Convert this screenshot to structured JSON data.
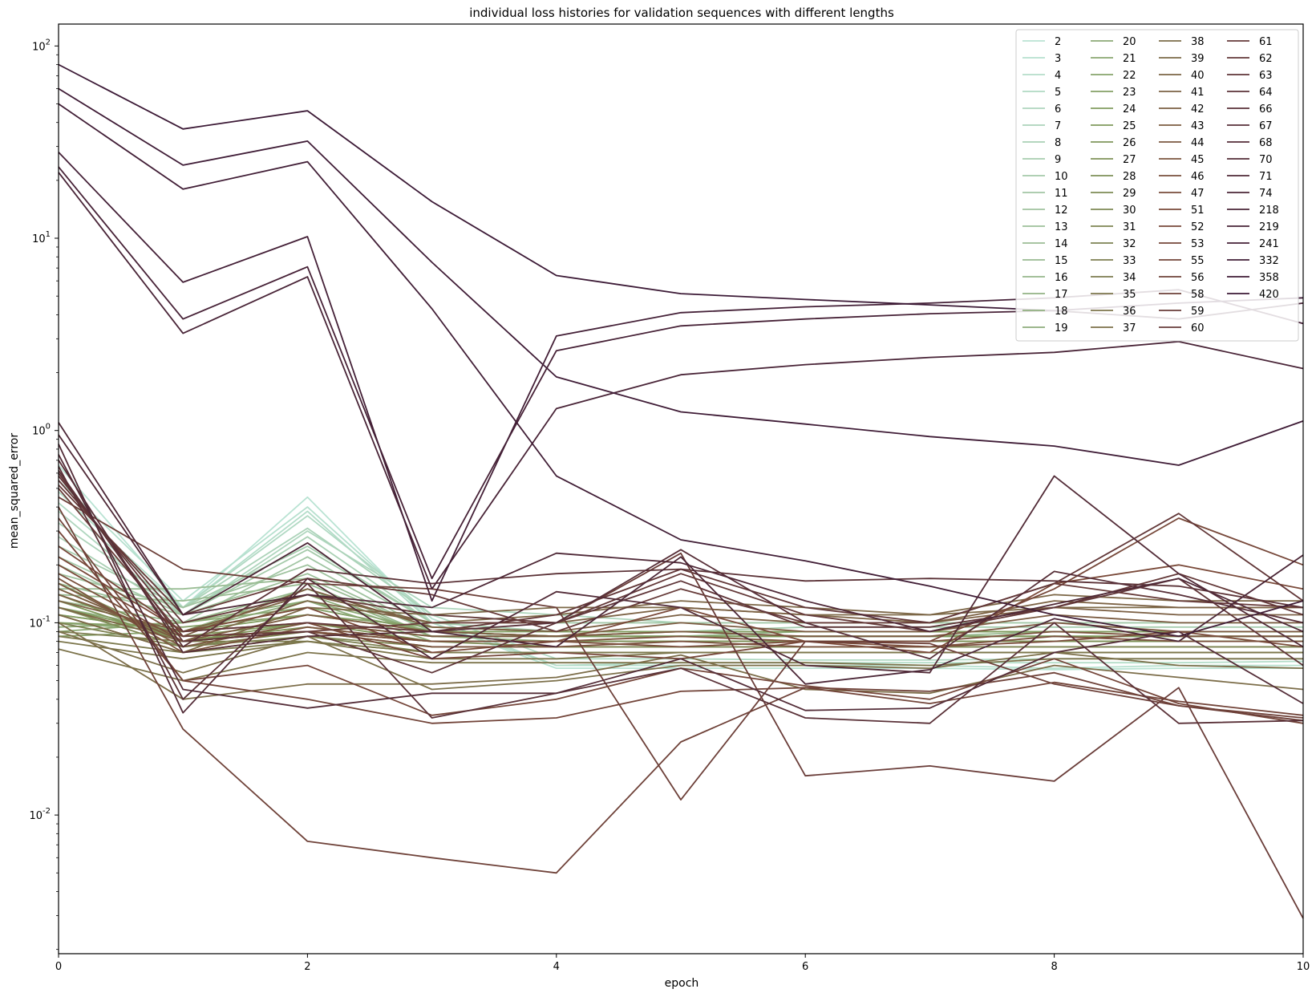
{
  "chart_data": {
    "type": "line",
    "title": "individual loss histories for validation sequences with different lengths",
    "xlabel": "epoch",
    "ylabel": "mean_squared_error",
    "xlim": [
      0,
      10
    ],
    "ylim": [
      0.0019,
      130
    ],
    "yscale": "log",
    "x_ticks": [
      0,
      2,
      4,
      6,
      8,
      10
    ],
    "y_ticks": [
      {
        "value": 0.01,
        "base": "10",
        "exp": "-2"
      },
      {
        "value": 0.1,
        "base": "10",
        "exp": "-1"
      },
      {
        "value": 1,
        "base": "10",
        "exp": "0"
      },
      {
        "value": 10,
        "base": "10",
        "exp": "1"
      },
      {
        "value": 100,
        "base": "10",
        "exp": "2"
      }
    ],
    "grid": false,
    "legend": {
      "placement": "upper-right",
      "columns": 4
    },
    "x": [
      0,
      1,
      2,
      3,
      4,
      5,
      6,
      7,
      8,
      9,
      10
    ],
    "colors": {
      "low": "#b9e3d3",
      "mid": "#7f9a5c",
      "high": "#7a4a3a",
      "top": "#3c1a36"
    },
    "series": [
      {
        "name": "2",
        "values": [
          0.66,
          0.12,
          0.45,
          0.1,
          0.058,
          0.058,
          0.058,
          0.058,
          0.057,
          0.058,
          0.058
        ]
      },
      {
        "name": "3",
        "values": [
          0.55,
          0.13,
          0.4,
          0.105,
          0.06,
          0.06,
          0.06,
          0.06,
          0.058,
          0.06,
          0.06
        ]
      },
      {
        "name": "4",
        "values": [
          0.48,
          0.12,
          0.38,
          0.1,
          0.06,
          0.062,
          0.062,
          0.062,
          0.062,
          0.062,
          0.063
        ]
      },
      {
        "name": "5",
        "values": [
          0.42,
          0.12,
          0.36,
          0.11,
          0.065,
          0.065,
          0.064,
          0.064,
          0.065,
          0.065,
          0.065
        ]
      },
      {
        "name": "6",
        "values": [
          0.38,
          0.11,
          0.3,
          0.12,
          0.11,
          0.1,
          0.1,
          0.1,
          0.1,
          0.1,
          0.1
        ]
      },
      {
        "name": "7",
        "values": [
          0.33,
          0.12,
          0.31,
          0.11,
          0.1,
          0.1,
          0.1,
          0.1,
          0.1,
          0.1,
          0.1
        ]
      },
      {
        "name": "8",
        "values": [
          0.28,
          0.11,
          0.28,
          0.1,
          0.1,
          0.1,
          0.1,
          0.1,
          0.1,
          0.1,
          0.1
        ]
      },
      {
        "name": "9",
        "values": [
          0.25,
          0.12,
          0.25,
          0.1,
          0.09,
          0.09,
          0.095,
          0.095,
          0.095,
          0.095,
          0.095
        ]
      },
      {
        "name": "10",
        "values": [
          0.22,
          0.11,
          0.24,
          0.1,
          0.1,
          0.1,
          0.1,
          0.1,
          0.1,
          0.1,
          0.1
        ]
      },
      {
        "name": "11",
        "values": [
          0.2,
          0.1,
          0.22,
          0.095,
          0.09,
          0.09,
          0.09,
          0.09,
          0.09,
          0.09,
          0.09
        ]
      },
      {
        "name": "12",
        "values": [
          0.18,
          0.12,
          0.2,
          0.09,
          0.09,
          0.09,
          0.09,
          0.09,
          0.09,
          0.09,
          0.09
        ]
      },
      {
        "name": "13",
        "values": [
          0.16,
          0.11,
          0.18,
          0.09,
          0.085,
          0.085,
          0.085,
          0.085,
          0.085,
          0.085,
          0.085
        ]
      },
      {
        "name": "14",
        "values": [
          0.15,
          0.15,
          0.17,
          0.09,
          0.085,
          0.085,
          0.085,
          0.085,
          0.09,
          0.09,
          0.09
        ]
      },
      {
        "name": "15",
        "values": [
          0.14,
          0.13,
          0.16,
          0.085,
          0.085,
          0.085,
          0.09,
          0.09,
          0.09,
          0.09,
          0.09
        ]
      },
      {
        "name": "16",
        "values": [
          0.13,
          0.1,
          0.15,
          0.085,
          0.085,
          0.09,
          0.09,
          0.09,
          0.09,
          0.09,
          0.09
        ]
      },
      {
        "name": "17",
        "values": [
          0.12,
          0.09,
          0.15,
          0.085,
          0.085,
          0.085,
          0.085,
          0.085,
          0.085,
          0.085,
          0.085
        ]
      },
      {
        "name": "18",
        "values": [
          0.11,
          0.09,
          0.14,
          0.085,
          0.08,
          0.08,
          0.08,
          0.08,
          0.08,
          0.08,
          0.08
        ]
      },
      {
        "name": "19",
        "values": [
          0.1,
          0.09,
          0.13,
          0.08,
          0.08,
          0.08,
          0.08,
          0.08,
          0.08,
          0.08,
          0.08
        ]
      },
      {
        "name": "20",
        "values": [
          0.095,
          0.1,
          0.13,
          0.09,
          0.085,
          0.085,
          0.085,
          0.085,
          0.085,
          0.085,
          0.085
        ]
      },
      {
        "name": "21",
        "values": [
          0.09,
          0.1,
          0.12,
          0.09,
          0.085,
          0.09,
          0.09,
          0.09,
          0.09,
          0.09,
          0.09
        ]
      },
      {
        "name": "22",
        "values": [
          0.085,
          0.09,
          0.12,
          0.09,
          0.09,
          0.09,
          0.09,
          0.09,
          0.09,
          0.09,
          0.09
        ]
      },
      {
        "name": "23",
        "values": [
          0.1,
          0.095,
          0.11,
          0.095,
          0.09,
          0.09,
          0.09,
          0.09,
          0.09,
          0.09,
          0.09
        ]
      },
      {
        "name": "24",
        "values": [
          0.11,
          0.09,
          0.11,
          0.09,
          0.09,
          0.09,
          0.09,
          0.09,
          0.09,
          0.09,
          0.09
        ]
      },
      {
        "name": "25",
        "values": [
          0.12,
          0.085,
          0.1,
          0.085,
          0.085,
          0.085,
          0.085,
          0.085,
          0.085,
          0.085,
          0.085
        ]
      },
      {
        "name": "26",
        "values": [
          0.13,
          0.08,
          0.1,
          0.08,
          0.08,
          0.08,
          0.08,
          0.08,
          0.08,
          0.08,
          0.08
        ]
      },
      {
        "name": "27",
        "values": [
          0.14,
          0.08,
          0.095,
          0.08,
          0.08,
          0.08,
          0.08,
          0.08,
          0.08,
          0.08,
          0.08
        ]
      },
      {
        "name": "28",
        "values": [
          0.15,
          0.08,
          0.09,
          0.08,
          0.08,
          0.08,
          0.08,
          0.08,
          0.08,
          0.08,
          0.08
        ]
      },
      {
        "name": "29",
        "values": [
          0.16,
          0.08,
          0.09,
          0.08,
          0.075,
          0.075,
          0.075,
          0.075,
          0.075,
          0.075,
          0.075
        ]
      },
      {
        "name": "30",
        "values": [
          0.12,
          0.075,
          0.09,
          0.075,
          0.075,
          0.075,
          0.075,
          0.075,
          0.075,
          0.075,
          0.075
        ]
      },
      {
        "name": "31",
        "values": [
          0.11,
          0.07,
          0.085,
          0.075,
          0.075,
          0.075,
          0.075,
          0.075,
          0.075,
          0.075,
          0.075
        ]
      },
      {
        "name": "32",
        "values": [
          0.1,
          0.075,
          0.085,
          0.07,
          0.07,
          0.07,
          0.07,
          0.07,
          0.07,
          0.07,
          0.07
        ]
      },
      {
        "name": "33",
        "values": [
          0.09,
          0.08,
          0.08,
          0.07,
          0.07,
          0.07,
          0.07,
          0.07,
          0.07,
          0.07,
          0.07
        ]
      },
      {
        "name": "34",
        "values": [
          0.085,
          0.07,
          0.08,
          0.07,
          0.07,
          0.07,
          0.07,
          0.07,
          0.07,
          0.07,
          0.07
        ]
      },
      {
        "name": "35",
        "values": [
          0.08,
          0.065,
          0.08,
          0.065,
          0.065,
          0.07,
          0.07,
          0.07,
          0.07,
          0.07,
          0.07
        ]
      },
      {
        "name": "36",
        "values": [
          0.073,
          0.05,
          0.07,
          0.062,
          0.062,
          0.062,
          0.062,
          0.06,
          0.065,
          0.065,
          0.065
        ]
      },
      {
        "name": "37",
        "values": [
          0.09,
          0.055,
          0.085,
          0.045,
          0.05,
          0.06,
          0.06,
          0.058,
          0.07,
          0.06,
          0.058
        ]
      },
      {
        "name": "38",
        "values": [
          0.1,
          0.04,
          0.048,
          0.048,
          0.052,
          0.068,
          0.045,
          0.043,
          0.06,
          0.052,
          0.045
        ]
      },
      {
        "name": "39",
        "values": [
          0.11,
          0.07,
          0.12,
          0.11,
          0.12,
          0.12,
          0.11,
          0.11,
          0.12,
          0.12,
          0.12
        ]
      },
      {
        "name": "40",
        "values": [
          0.12,
          0.08,
          0.13,
          0.1,
          0.11,
          0.13,
          0.12,
          0.11,
          0.14,
          0.13,
          0.13
        ]
      },
      {
        "name": "41",
        "values": [
          0.13,
          0.09,
          0.14,
          0.1,
          0.1,
          0.12,
          0.11,
          0.1,
          0.13,
          0.12,
          0.12
        ]
      },
      {
        "name": "42",
        "values": [
          0.14,
          0.085,
          0.15,
          0.095,
          0.09,
          0.11,
          0.1,
          0.1,
          0.12,
          0.11,
          0.11
        ]
      },
      {
        "name": "43",
        "values": [
          0.15,
          0.08,
          0.11,
          0.09,
          0.085,
          0.1,
          0.09,
          0.09,
          0.11,
          0.1,
          0.1
        ]
      },
      {
        "name": "44",
        "values": [
          0.16,
          0.075,
          0.1,
          0.085,
          0.085,
          0.09,
          0.085,
          0.085,
          0.1,
          0.09,
          0.09
        ]
      },
      {
        "name": "45",
        "values": [
          0.17,
          0.07,
          0.095,
          0.08,
          0.08,
          0.085,
          0.08,
          0.08,
          0.09,
          0.085,
          0.085
        ]
      },
      {
        "name": "46",
        "values": [
          0.18,
          0.08,
          0.09,
          0.075,
          0.075,
          0.08,
          0.075,
          0.075,
          0.085,
          0.08,
          0.08
        ]
      },
      {
        "name": "47",
        "values": [
          0.2,
          0.085,
          0.09,
          0.08,
          0.08,
          0.075,
          0.08,
          0.075,
          0.08,
          0.09,
          0.075
        ]
      },
      {
        "name": "51",
        "values": [
          0.22,
          0.09,
          0.12,
          0.07,
          0.08,
          0.12,
          0.08,
          0.07,
          0.16,
          0.2,
          0.15
        ]
      },
      {
        "name": "52",
        "values": [
          0.25,
          0.09,
          0.1,
          0.065,
          0.07,
          0.065,
          0.08,
          0.08,
          0.15,
          0.35,
          0.2
        ]
      },
      {
        "name": "53",
        "values": [
          0.3,
          0.05,
          0.06,
          0.033,
          0.04,
          0.058,
          0.047,
          0.04,
          0.065,
          0.038,
          0.03
        ]
      },
      {
        "name": "55",
        "values": [
          0.35,
          0.05,
          0.04,
          0.03,
          0.032,
          0.044,
          0.046,
          0.038,
          0.049,
          0.039,
          0.033
        ]
      },
      {
        "name": "56",
        "values": [
          0.4,
          0.028,
          0.0073,
          0.006,
          0.005,
          0.024,
          0.046,
          0.044,
          0.055,
          0.037,
          0.032
        ]
      },
      {
        "name": "58",
        "values": [
          0.45,
          0.19,
          0.16,
          0.15,
          0.12,
          0.012,
          0.08,
          0.078,
          0.048,
          0.037,
          0.031
        ]
      },
      {
        "name": "59",
        "values": [
          0.5,
          0.085,
          0.09,
          0.1,
          0.1,
          0.23,
          0.016,
          0.018,
          0.015,
          0.046,
          0.0029
        ]
      },
      {
        "name": "60",
        "values": [
          0.52,
          0.11,
          0.17,
          0.14,
          0.09,
          0.15,
          0.1,
          0.1,
          0.16,
          0.13,
          0.12
        ]
      },
      {
        "name": "61",
        "values": [
          0.55,
          0.1,
          0.14,
          0.11,
          0.1,
          0.18,
          0.11,
          0.09,
          0.12,
          0.18,
          0.11
        ]
      },
      {
        "name": "62",
        "values": [
          0.58,
          0.09,
          0.1,
          0.09,
          0.11,
          0.19,
          0.12,
          0.1,
          0.16,
          0.37,
          0.13
        ]
      },
      {
        "name": "63",
        "values": [
          0.6,
          0.08,
          0.09,
          0.055,
          0.1,
          0.165,
          0.095,
          0.095,
          0.12,
          0.17,
          0.06
        ]
      },
      {
        "name": "64",
        "values": [
          0.62,
          0.075,
          0.19,
          0.16,
          0.18,
          0.19,
          0.165,
          0.17,
          0.165,
          0.155,
          0.12
        ]
      },
      {
        "name": "66",
        "values": [
          0.65,
          0.04,
          0.16,
          0.032,
          0.043,
          0.058,
          0.032,
          0.03,
          0.1,
          0.03,
          0.031
        ]
      },
      {
        "name": "67",
        "values": [
          0.7,
          0.07,
          0.085,
          0.09,
          0.1,
          0.24,
          0.1,
          0.065,
          0.185,
          0.14,
          0.1
        ]
      },
      {
        "name": "68",
        "values": [
          0.75,
          0.045,
          0.036,
          0.043,
          0.043,
          0.065,
          0.035,
          0.036,
          0.07,
          0.09,
          0.038
        ]
      },
      {
        "name": "70",
        "values": [
          0.85,
          0.034,
          0.17,
          0.065,
          0.145,
          0.12,
          0.06,
          0.055,
          0.58,
          0.18,
          0.075
        ]
      },
      {
        "name": "71",
        "values": [
          0.95,
          0.11,
          0.14,
          0.12,
          0.23,
          0.205,
          0.13,
          0.09,
          0.125,
          0.17,
          0.09
        ]
      },
      {
        "name": "74",
        "values": [
          1.1,
          0.11,
          0.26,
          0.09,
          0.075,
          0.22,
          0.048,
          0.057,
          0.105,
          0.08,
          0.225
        ]
      },
      {
        "name": "218",
        "values": [
          22,
          3.2,
          6.3,
          0.15,
          1.3,
          1.95,
          2.2,
          2.4,
          2.55,
          2.9,
          2.1
        ]
      },
      {
        "name": "219",
        "values": [
          23.5,
          3.8,
          7.1,
          0.17,
          2.6,
          3.5,
          3.8,
          4.05,
          4.2,
          3.8,
          4.6
        ]
      },
      {
        "name": "241",
        "values": [
          28,
          5.9,
          10.2,
          0.13,
          3.1,
          4.1,
          4.4,
          4.6,
          4.9,
          5.4,
          3.6
        ]
      },
      {
        "name": "332",
        "values": [
          50,
          18,
          25,
          4.3,
          0.58,
          0.27,
          0.21,
          0.155,
          0.11,
          0.085,
          0.13
        ]
      },
      {
        "name": "358",
        "values": [
          60,
          24,
          32,
          7.5,
          1.9,
          1.25,
          1.08,
          0.93,
          0.83,
          0.66,
          1.12
        ]
      },
      {
        "name": "420",
        "values": [
          80,
          37,
          46,
          15.5,
          6.4,
          5.15,
          4.8,
          4.5,
          4.2,
          4.6,
          4.9
        ]
      }
    ]
  }
}
